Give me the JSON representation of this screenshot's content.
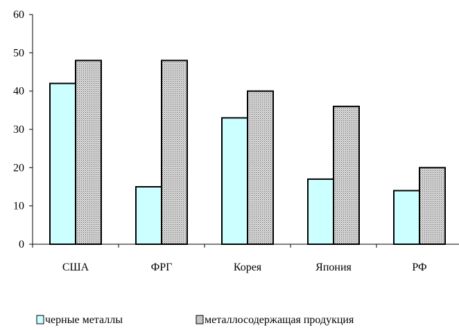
{
  "chart_data": {
    "type": "bar",
    "title": "",
    "xlabel": "",
    "ylabel": "",
    "categories": [
      "США",
      "ФРГ",
      "Корея",
      "Япония",
      "РФ"
    ],
    "series": [
      {
        "name": "черные металлы",
        "values": [
          42,
          15,
          33,
          17,
          14
        ],
        "color": "#ccffff",
        "pattern": "solid"
      },
      {
        "name": "металлосодержащая продукция",
        "values": [
          48,
          48,
          40,
          36,
          20
        ],
        "color": "#c8c8c8",
        "pattern": "dotted"
      }
    ],
    "ylim": [
      0,
      60
    ],
    "yticks": [
      0,
      10,
      20,
      30,
      40,
      50,
      60
    ],
    "grid": false,
    "legend_position": "bottom"
  }
}
